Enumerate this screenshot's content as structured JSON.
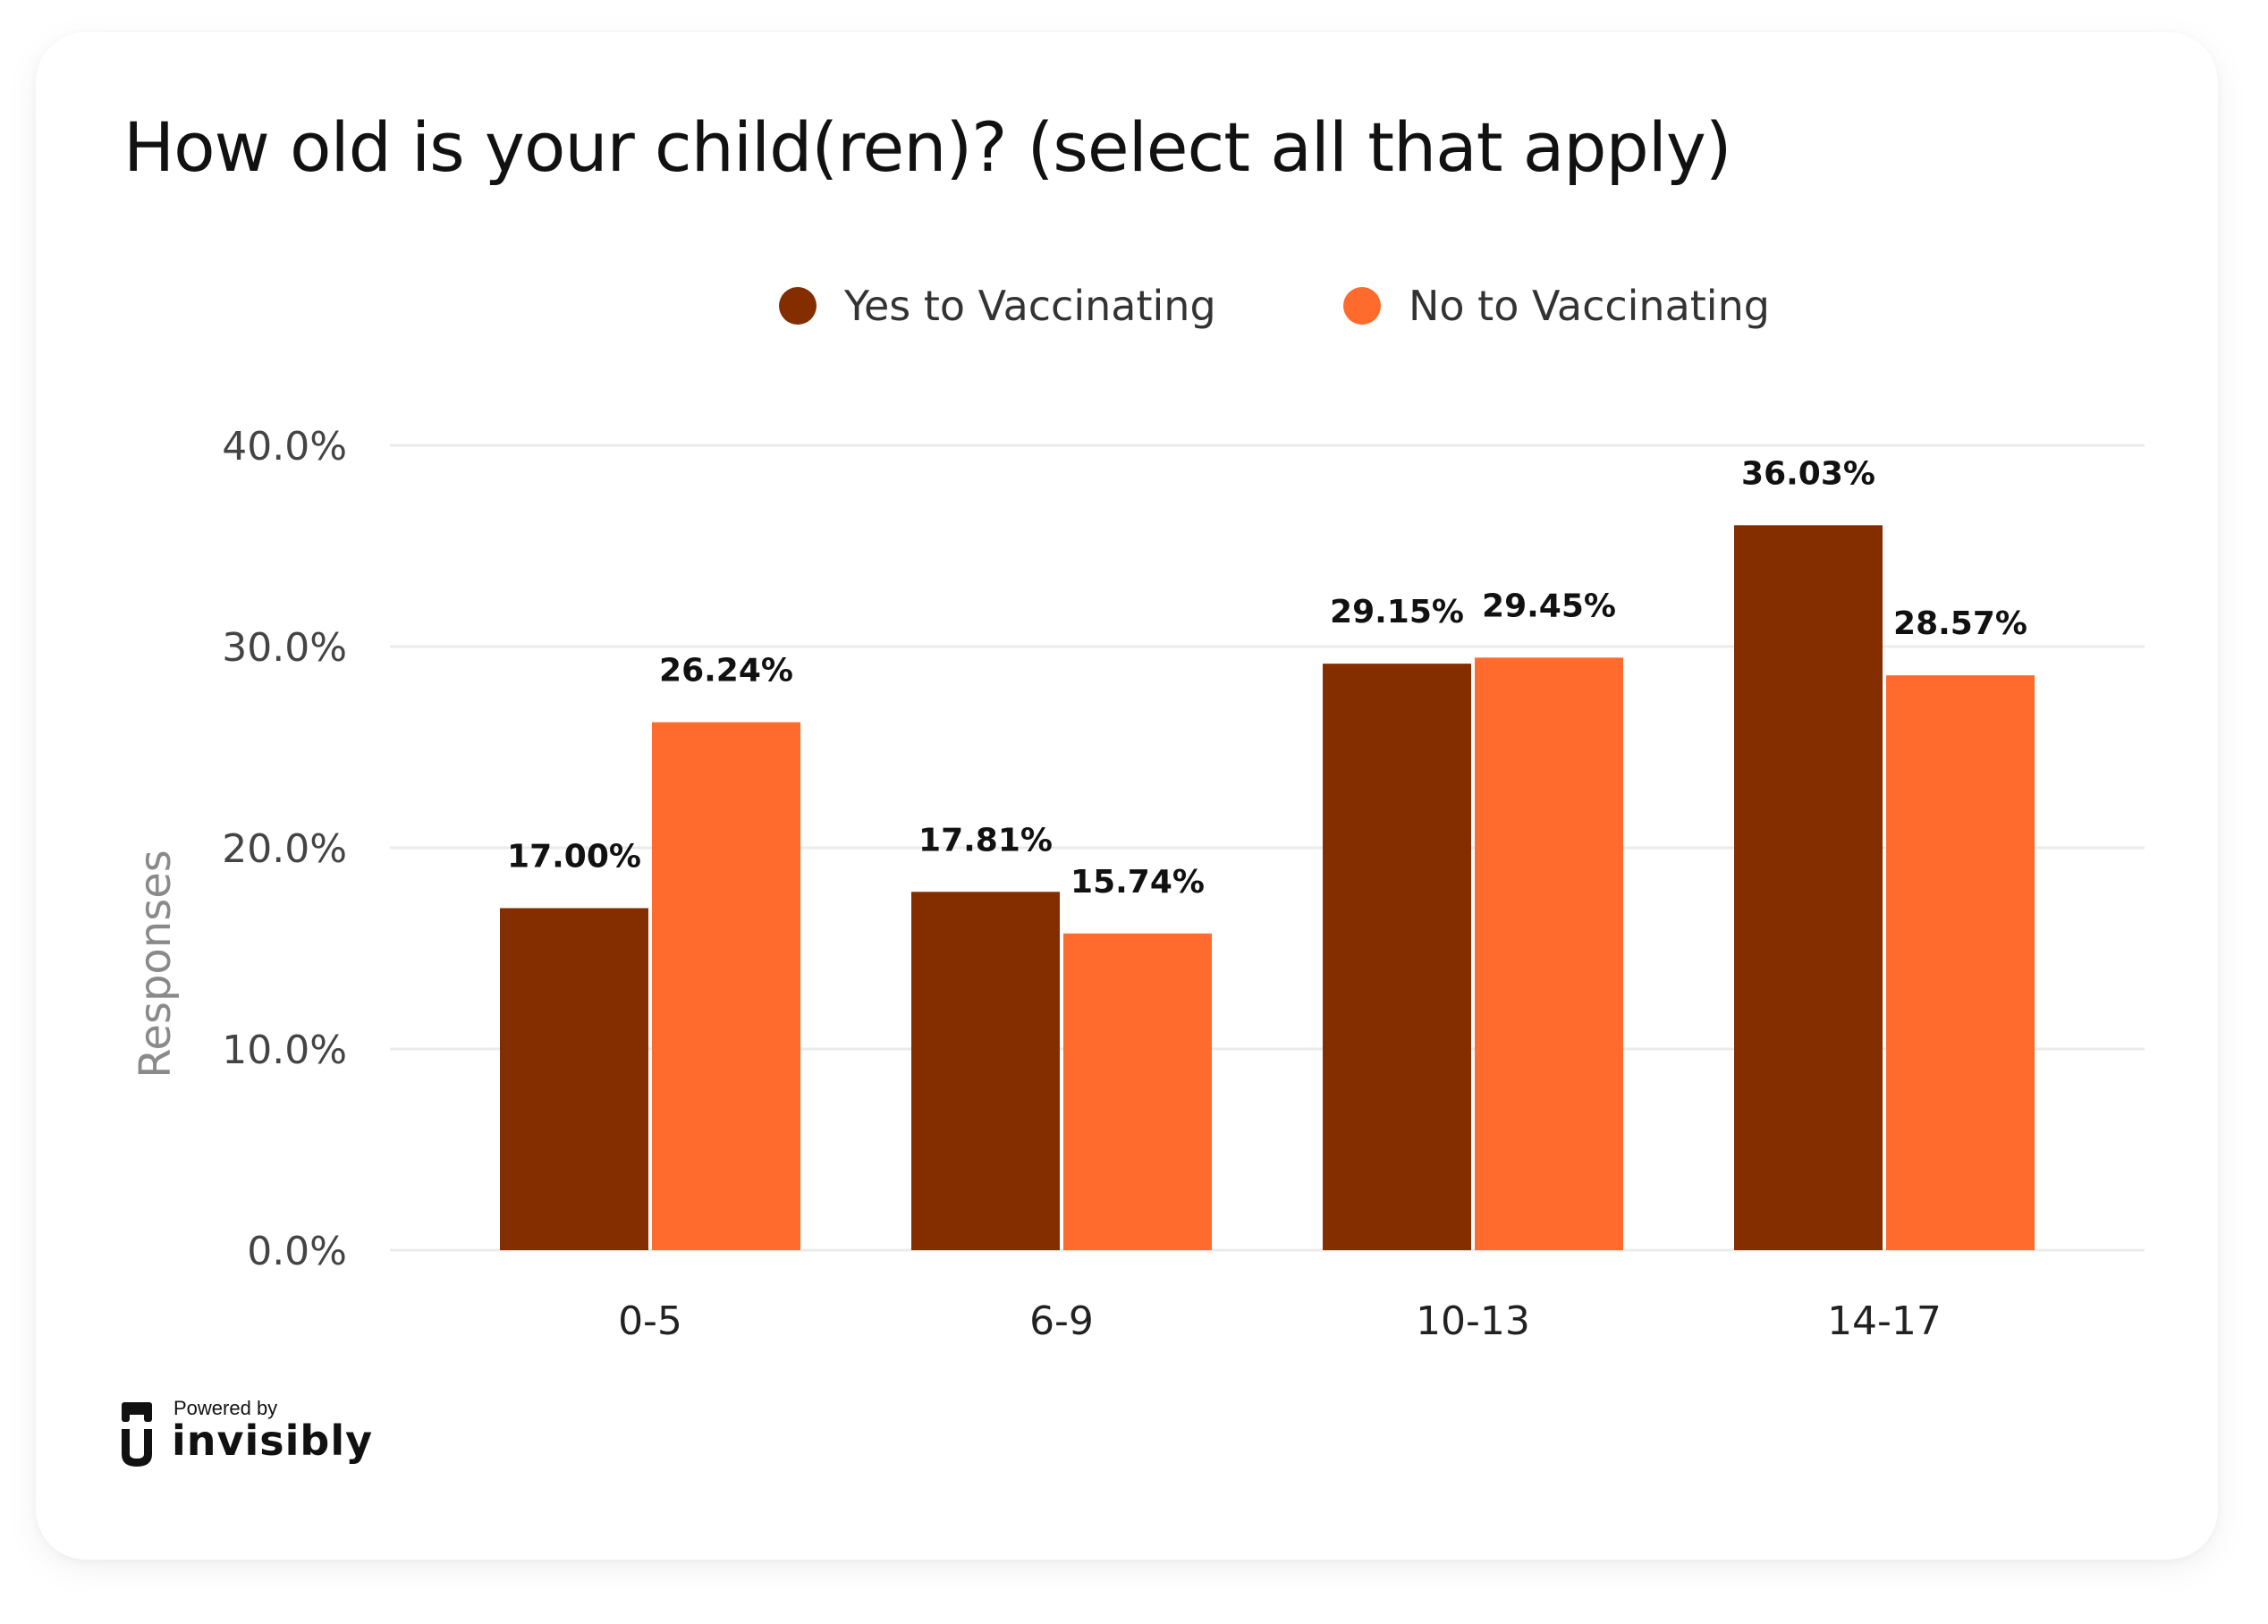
{
  "colors": {
    "yes": "#842E00",
    "no": "#FF6B2C",
    "grid": "#EBEBEB"
  },
  "brand": {
    "powered_by": "Powered by",
    "name": "invisibly",
    "icon": "invisibly-logo-icon"
  },
  "chart_data": {
    "type": "bar",
    "title": "How old is your child(ren)? (select all that apply)",
    "ylabel": "Responses",
    "xlabel": "",
    "ylim": [
      0,
      40
    ],
    "yticks": [
      "0.0%",
      "10.0%",
      "20.0%",
      "30.0%",
      "40.0%"
    ],
    "grid": true,
    "legend_position": "top",
    "categories": [
      "0-5",
      "6-9",
      "10-13",
      "14-17"
    ],
    "series": [
      {
        "name": "Yes to Vaccinating",
        "values": [
          17.0,
          17.81,
          29.15,
          36.03
        ],
        "labels": [
          "17.00%",
          "17.81%",
          "29.15%",
          "36.03%"
        ]
      },
      {
        "name": "No to Vaccinating",
        "values": [
          26.24,
          15.74,
          29.45,
          28.57
        ],
        "labels": [
          "26.24%",
          "15.74%",
          "29.45%",
          "28.57%"
        ]
      }
    ]
  }
}
